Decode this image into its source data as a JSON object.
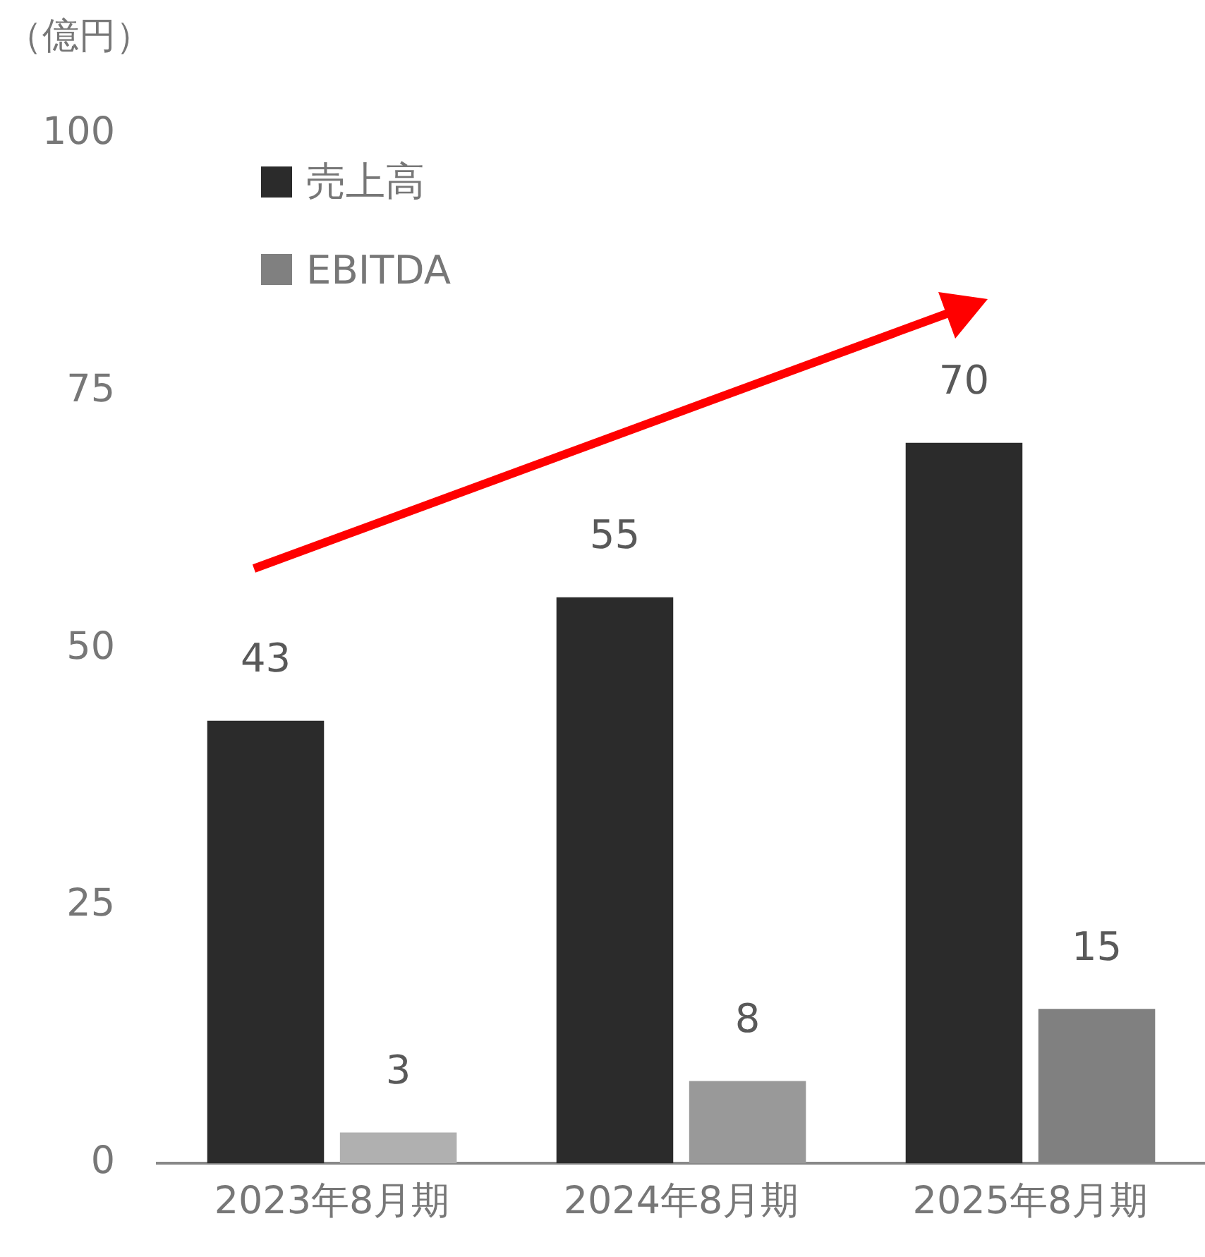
{
  "chart_data": {
    "type": "bar",
    "ylabel": "（億円）",
    "categories": [
      "2023年8月期",
      "2024年8月期",
      "2025年8月期"
    ],
    "series": [
      {
        "name": "売上高",
        "color": "#2b2b2b",
        "values": [
          43,
          55,
          70
        ]
      },
      {
        "name": "EBITDA",
        "color": "#808080",
        "colors": [
          "#b0b0b0",
          "#999999",
          "#808080"
        ],
        "values": [
          3,
          8,
          15
        ]
      }
    ],
    "ylim": [
      0,
      100
    ],
    "yticks": [
      0,
      25,
      50,
      75,
      100
    ],
    "grid": false,
    "legend": "top left",
    "data_labels": true
  }
}
